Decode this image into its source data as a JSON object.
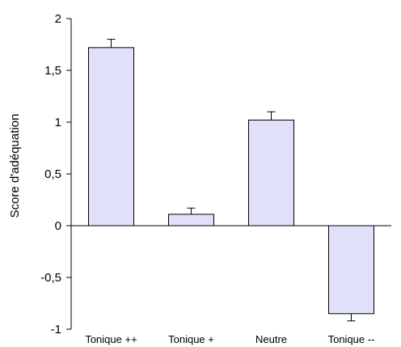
{
  "chart_data": {
    "type": "bar",
    "title": "",
    "xlabel": "",
    "ylabel": "Score d'adéquation",
    "categories": [
      "Tonique ++",
      "Tonique +",
      "Neutre",
      "Tonique --"
    ],
    "values": [
      1.72,
      0.11,
      1.02,
      -0.85
    ],
    "errors": [
      0.08,
      0.06,
      0.08,
      0.07
    ],
    "ylim": [
      -1,
      2
    ],
    "yticks": [
      -1,
      -0.5,
      0,
      0.5,
      1,
      1.5,
      2
    ],
    "ytick_labels": [
      "-1",
      "-0,5",
      "0",
      "0,5",
      "1",
      "1,5",
      "2"
    ],
    "grid": false,
    "colors": {
      "bar_fill": "#e0e0f8",
      "bar_stroke": "#000000",
      "axis": "#000000"
    }
  }
}
